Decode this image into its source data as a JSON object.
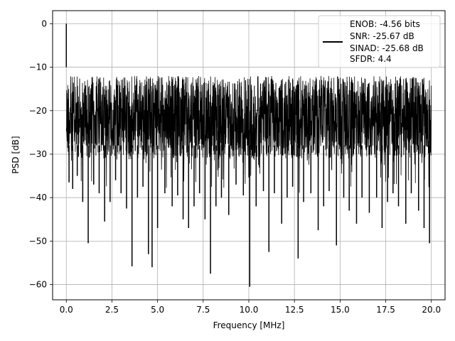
{
  "chart_data": {
    "type": "line",
    "title": "",
    "xlabel": "Frequency [MHz]",
    "ylabel": "PSD [dB]",
    "xlim": [
      -0.75,
      20.75
    ],
    "ylim": [
      -63.5,
      3
    ],
    "xticks": [
      0.0,
      2.5,
      5.0,
      7.5,
      10.0,
      12.5,
      15.0,
      17.5,
      20.0
    ],
    "xtick_labels": [
      "0.0",
      "2.5",
      "5.0",
      "7.5",
      "10.0",
      "12.5",
      "15.0",
      "17.5",
      "20.0"
    ],
    "yticks": [
      0,
      -10,
      -20,
      -30,
      -40,
      -50,
      -60
    ],
    "ytick_labels": [
      "0",
      "−10",
      "−20",
      "−30",
      "−40",
      "−50",
      "−60"
    ],
    "grid": true,
    "legend_position": "top-right",
    "series": [
      {
        "name": "",
        "color": "#000000",
        "band_top": -10,
        "band_bottom": -30,
        "peak": {
          "x": 0.0,
          "y": 0.0
        },
        "notches": [
          {
            "x": 0.15,
            "y": -36.5
          },
          {
            "x": 0.35,
            "y": -38.0
          },
          {
            "x": 0.6,
            "y": -35.0
          },
          {
            "x": 0.9,
            "y": -41.0
          },
          {
            "x": 1.2,
            "y": -50.5
          },
          {
            "x": 1.5,
            "y": -37.0
          },
          {
            "x": 1.8,
            "y": -39.0
          },
          {
            "x": 2.1,
            "y": -45.5
          },
          {
            "x": 2.4,
            "y": -41.0
          },
          {
            "x": 2.7,
            "y": -36.0
          },
          {
            "x": 3.0,
            "y": -39.0
          },
          {
            "x": 3.3,
            "y": -42.5
          },
          {
            "x": 3.6,
            "y": -55.8
          },
          {
            "x": 3.9,
            "y": -40.0
          },
          {
            "x": 4.2,
            "y": -37.5
          },
          {
            "x": 4.5,
            "y": -53.0
          },
          {
            "x": 4.7,
            "y": -56.0
          },
          {
            "x": 5.0,
            "y": -47.0
          },
          {
            "x": 5.4,
            "y": -39.0
          },
          {
            "x": 5.8,
            "y": -42.0
          },
          {
            "x": 6.1,
            "y": -39.5
          },
          {
            "x": 6.4,
            "y": -45.0
          },
          {
            "x": 6.7,
            "y": -47.0
          },
          {
            "x": 7.0,
            "y": -42.0
          },
          {
            "x": 7.3,
            "y": -39.0
          },
          {
            "x": 7.6,
            "y": -45.0
          },
          {
            "x": 7.9,
            "y": -57.5
          },
          {
            "x": 8.2,
            "y": -42.0
          },
          {
            "x": 8.5,
            "y": -40.0
          },
          {
            "x": 8.9,
            "y": -44.0
          },
          {
            "x": 9.3,
            "y": -37.0
          },
          {
            "x": 9.7,
            "y": -39.5
          },
          {
            "x": 10.05,
            "y": -60.5
          },
          {
            "x": 10.4,
            "y": -42.0
          },
          {
            "x": 10.8,
            "y": -38.5
          },
          {
            "x": 11.1,
            "y": -52.5
          },
          {
            "x": 11.4,
            "y": -39.0
          },
          {
            "x": 11.8,
            "y": -46.0
          },
          {
            "x": 12.1,
            "y": -40.0
          },
          {
            "x": 12.4,
            "y": -37.5
          },
          {
            "x": 12.7,
            "y": -54.0
          },
          {
            "x": 13.0,
            "y": -41.0
          },
          {
            "x": 13.4,
            "y": -39.0
          },
          {
            "x": 13.8,
            "y": -47.5
          },
          {
            "x": 14.1,
            "y": -42.0
          },
          {
            "x": 14.4,
            "y": -38.5
          },
          {
            "x": 14.8,
            "y": -51.0
          },
          {
            "x": 15.2,
            "y": -40.0
          },
          {
            "x": 15.5,
            "y": -43.0
          },
          {
            "x": 15.9,
            "y": -46.0
          },
          {
            "x": 16.2,
            "y": -40.0
          },
          {
            "x": 16.6,
            "y": -43.5
          },
          {
            "x": 17.0,
            "y": -40.0
          },
          {
            "x": 17.3,
            "y": -47.0
          },
          {
            "x": 17.6,
            "y": -41.0
          },
          {
            "x": 17.9,
            "y": -39.0
          },
          {
            "x": 18.2,
            "y": -42.0
          },
          {
            "x": 18.6,
            "y": -46.0
          },
          {
            "x": 18.9,
            "y": -39.0
          },
          {
            "x": 19.3,
            "y": -43.0
          },
          {
            "x": 19.6,
            "y": -47.0
          },
          {
            "x": 19.9,
            "y": -50.5
          }
        ]
      }
    ],
    "legend_lines": [
      "ENOB: -4.56 bits",
      "SNR: -25.67 dB",
      "SINAD: -25.68 dB",
      "SFDR: 4.4"
    ]
  }
}
